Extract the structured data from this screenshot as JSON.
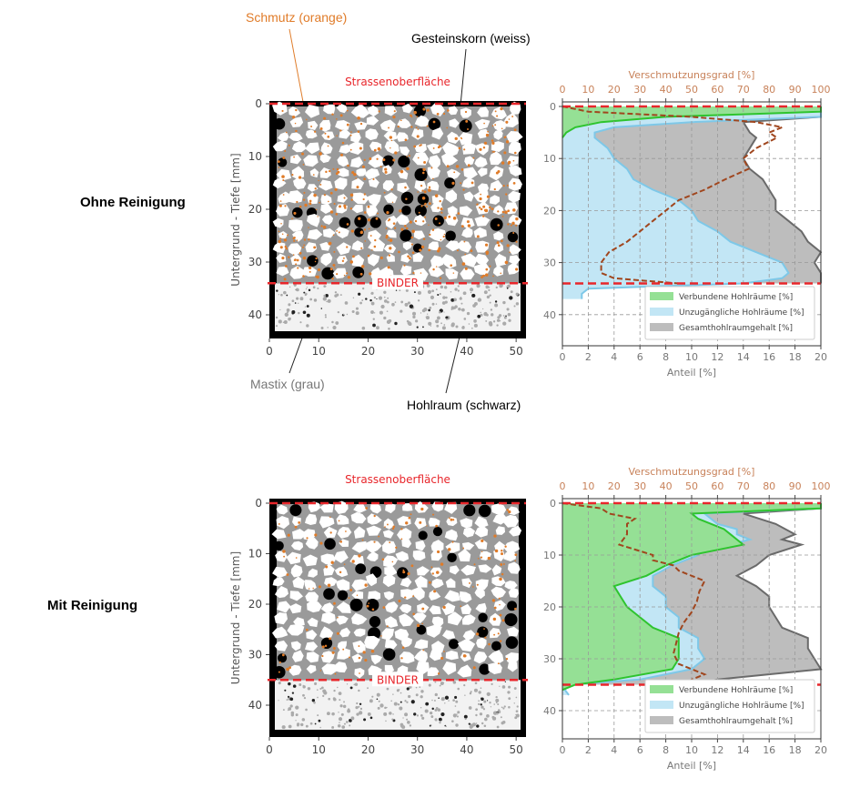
{
  "rows": [
    {
      "title": "Ohne Reinigung",
      "surface_label": "Strassenoberfläche",
      "binder_label": "BINDER"
    },
    {
      "title": "Mit Reinigung",
      "surface_label": "Strassenoberfläche",
      "binder_label": "BINDER"
    }
  ],
  "annotations": {
    "schmutz": "Schmutz (orange)",
    "gesteinskorn": "Gesteinskorn (weiss)",
    "mastix": "Mastix (grau)",
    "hohlraum": "Hohlraum (schwarz)"
  },
  "image_axes": {
    "ylabel": "Untergrund - Tiefe [mm]",
    "xticks": [
      "0",
      "10",
      "20",
      "30",
      "40",
      "50"
    ],
    "yticks": [
      "0",
      "10",
      "20",
      "30",
      "40"
    ]
  },
  "colors": {
    "red": "#e8262b",
    "orange": "#e07b28",
    "green": "#2ec42e",
    "blue": "#7ec8e8",
    "gray": "#6a6a6a",
    "brown": "#a0461e"
  },
  "chart_data": [
    {
      "type": "area",
      "title": "Ohne Reinigung",
      "xlabel": "Anteil [%]",
      "x2label": "Verschmutzungsgrad [%]",
      "ylabel": "Untergrund - Tiefe [mm]",
      "xlim": [
        0,
        20
      ],
      "x2lim": [
        0,
        100
      ],
      "ylim": [
        45,
        0
      ],
      "xticks": [
        "0",
        "2",
        "4",
        "6",
        "8",
        "10",
        "12",
        "14",
        "16",
        "18",
        "20"
      ],
      "x2ticks": [
        "0",
        "10",
        "20",
        "30",
        "40",
        "50",
        "60",
        "70",
        "80",
        "90",
        "100"
      ],
      "yticks": [
        "0",
        "10",
        "20",
        "30",
        "40"
      ],
      "binder_depth": 34,
      "legend_position": "lower-right",
      "series": [
        {
          "name": "Gesamthohlraumgehalt [%]",
          "depth": [
            0,
            2,
            3,
            5,
            6,
            8,
            10,
            12,
            14,
            16,
            18,
            20,
            22,
            24,
            26,
            28,
            30,
            32,
            34
          ],
          "values": [
            20,
            20,
            14,
            14.5,
            15,
            14.5,
            14,
            14.5,
            15.5,
            16,
            16.5,
            16.5,
            17.5,
            18.5,
            19,
            20,
            19.5,
            20,
            20
          ]
        },
        {
          "name": "Unzugängliche Hohlräume [%]",
          "depth": [
            0,
            2,
            3,
            4,
            5,
            6,
            8,
            10,
            12,
            14,
            16,
            18,
            20,
            22,
            24,
            26,
            28,
            30,
            32,
            33,
            34,
            35,
            36,
            37
          ],
          "values": [
            20,
            20,
            10,
            4,
            2.5,
            2.5,
            3.5,
            4,
            5,
            5.5,
            7,
            9,
            10,
            10.5,
            12,
            13,
            15,
            17,
            17.5,
            17,
            14,
            2,
            1.5,
            1.5
          ]
        },
        {
          "name": "Verbundene Hohlräume [%]",
          "depth": [
            0,
            1,
            1.5,
            2,
            3,
            4,
            5,
            6
          ],
          "values": [
            20,
            20,
            14,
            8,
            3,
            1,
            0.3,
            0
          ]
        },
        {
          "name": "Verschmutzungsgrad [%]",
          "axis": "top",
          "depth": [
            0,
            1,
            2,
            3,
            4,
            5,
            6,
            8,
            10,
            12,
            14,
            16,
            18,
            20,
            22,
            24,
            26,
            28,
            30,
            32,
            33,
            34
          ],
          "values": [
            0,
            10,
            50,
            75,
            85,
            80,
            83,
            75,
            70,
            72,
            63,
            55,
            45,
            40,
            35,
            30,
            25,
            18,
            15,
            15,
            20,
            45
          ]
        }
      ]
    },
    {
      "type": "area",
      "title": "Mit Reinigung",
      "xlabel": "Anteil [%]",
      "x2label": "Verschmutzungsgrad [%]",
      "ylabel": "Untergrund - Tiefe [mm]",
      "xlim": [
        0,
        20
      ],
      "x2lim": [
        0,
        100
      ],
      "ylim": [
        45,
        0
      ],
      "xticks": [
        "0",
        "2",
        "4",
        "6",
        "8",
        "10",
        "12",
        "14",
        "16",
        "18",
        "20"
      ],
      "x2ticks": [
        "0",
        "10",
        "20",
        "30",
        "40",
        "50",
        "60",
        "70",
        "80",
        "90",
        "100"
      ],
      "yticks": [
        "0",
        "10",
        "20",
        "30",
        "40"
      ],
      "binder_depth": 35,
      "legend_position": "lower-right",
      "series": [
        {
          "name": "Gesamthohlraumgehalt [%]",
          "depth": [
            0,
            1,
            2,
            4,
            6,
            7,
            8,
            10,
            12,
            14,
            16,
            18,
            20,
            22,
            24,
            26,
            28,
            30,
            32,
            34,
            35
          ],
          "values": [
            20,
            20,
            14,
            16.5,
            18,
            17,
            18.5,
            16,
            15,
            13.5,
            15,
            16,
            16,
            16.5,
            17,
            19,
            19,
            19.5,
            20,
            12,
            10
          ]
        },
        {
          "name": "Unzugängliche Hohlräume [%]",
          "depth": [
            0,
            1,
            2,
            4,
            5,
            6,
            7,
            8,
            9,
            10,
            12,
            14,
            16,
            18,
            20,
            22,
            24,
            26,
            28,
            30,
            32,
            34,
            35,
            36,
            37
          ],
          "values": [
            20,
            20,
            11,
            12,
            13.5,
            13.5,
            14.5,
            13,
            11,
            10.5,
            8.5,
            7,
            7,
            8,
            8,
            9,
            9,
            10.5,
            10.5,
            11,
            10,
            6,
            0.5,
            0.2,
            0.5
          ]
        },
        {
          "name": "Verbundene Hohlräume [%]",
          "depth": [
            0,
            1,
            2,
            3,
            5,
            6,
            7,
            8,
            9,
            10,
            11,
            12,
            14,
            16,
            18,
            20,
            22,
            24,
            26,
            28,
            30,
            32,
            34,
            35,
            36
          ],
          "values": [
            20,
            20,
            10,
            10.5,
            12.5,
            13,
            13.5,
            14,
            12,
            10,
            9,
            8,
            6.5,
            4,
            4.5,
            5,
            6,
            7,
            9,
            9,
            9,
            8.5,
            4,
            1,
            0
          ]
        },
        {
          "name": "Verschmutzungsgrad [%]",
          "axis": "top",
          "depth": [
            0,
            1,
            2,
            3,
            4,
            6,
            8,
            10,
            11,
            12,
            13,
            15,
            17,
            19,
            21,
            23,
            25,
            27,
            29,
            31,
            32,
            33,
            34,
            35
          ],
          "values": [
            0,
            15,
            18,
            28,
            25,
            25,
            22,
            35,
            35,
            43,
            45,
            55,
            53,
            52,
            50,
            47,
            45,
            44,
            43,
            45,
            50,
            55,
            50,
            48
          ]
        }
      ]
    }
  ]
}
